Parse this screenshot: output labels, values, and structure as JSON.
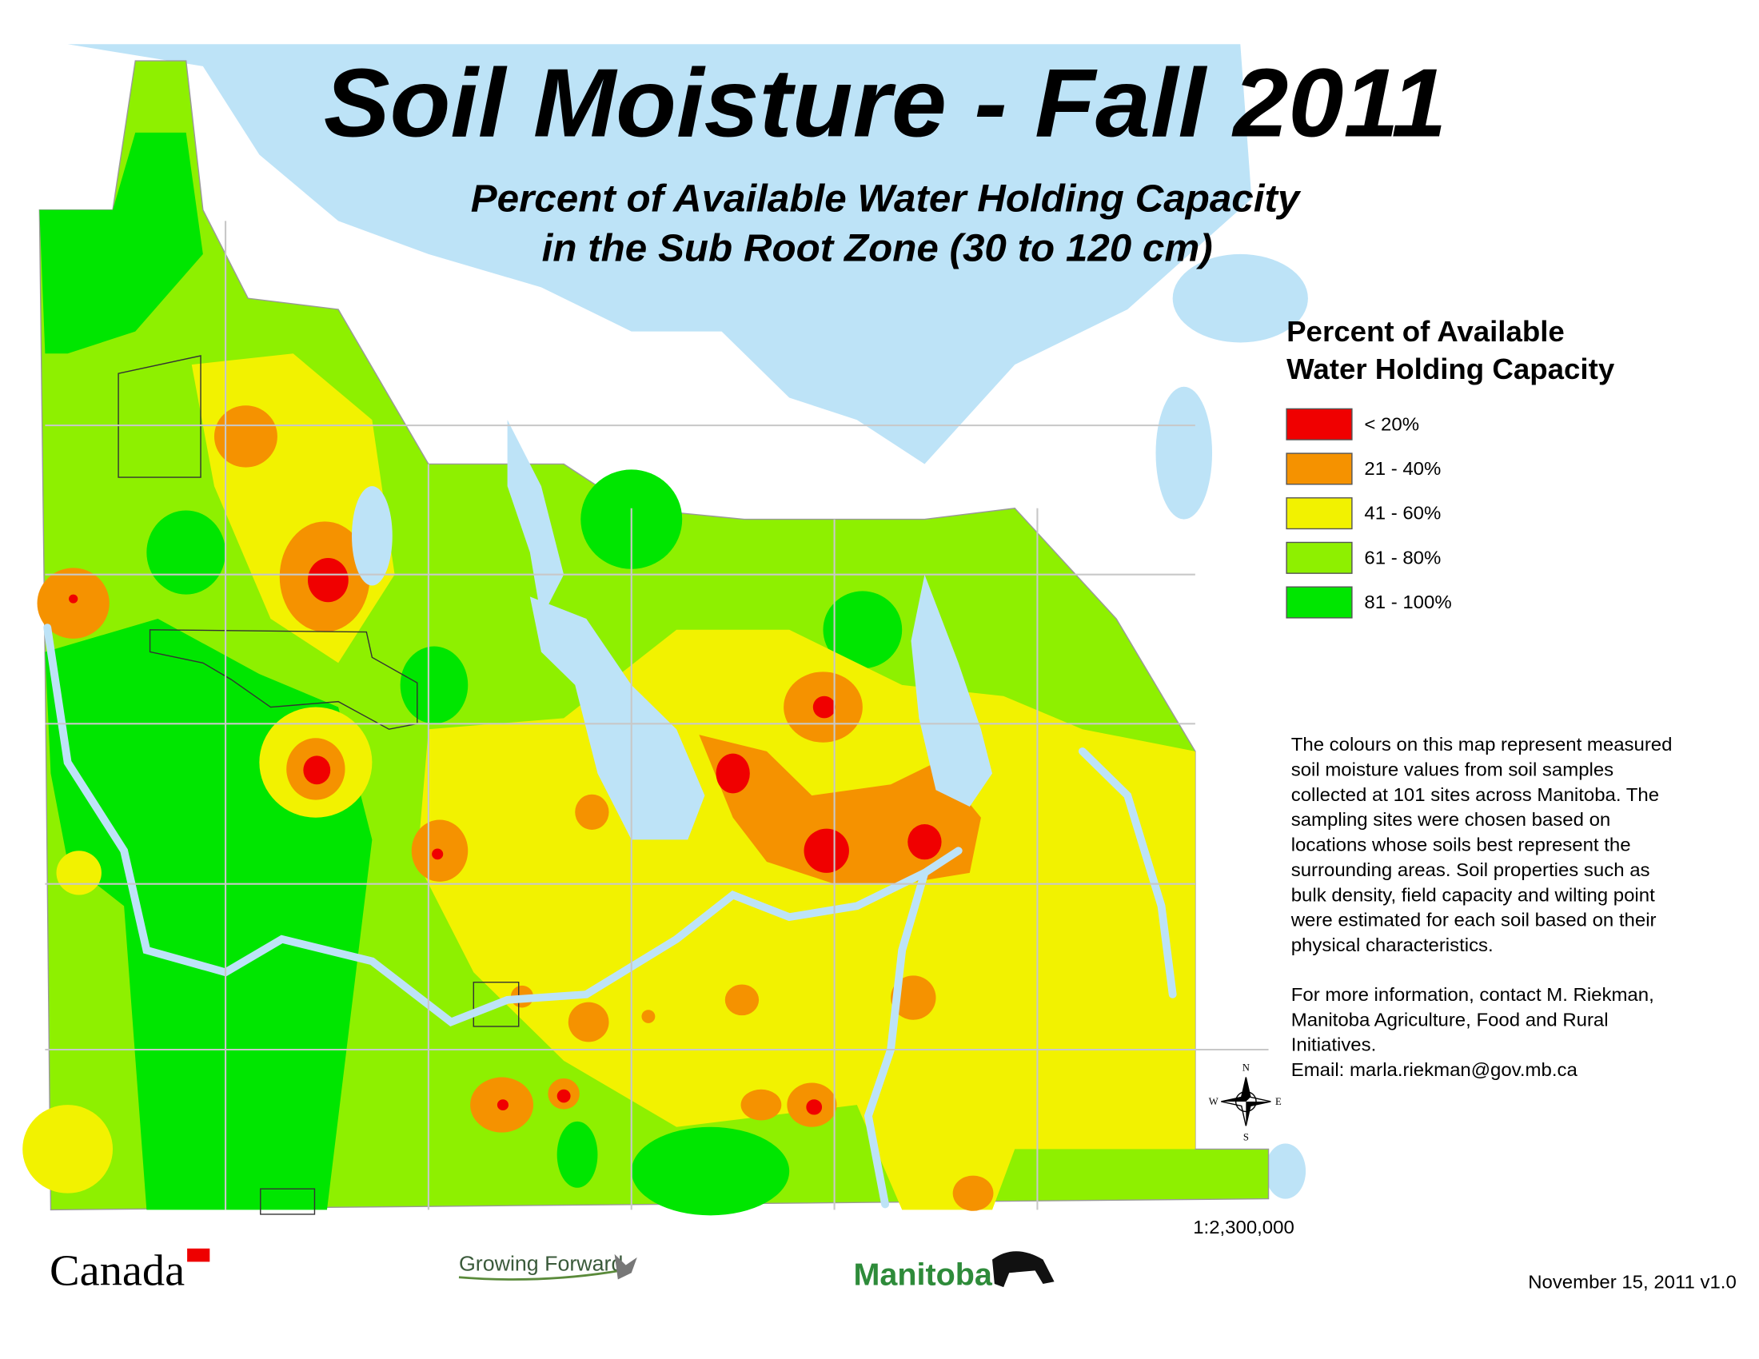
{
  "header": {
    "title": "Soil Moisture - Fall 2011",
    "subtitle": [
      "Percent of Available Water Holding Capacity",
      "in the Sub Root Zone (30 to 120 cm)"
    ]
  },
  "legend": {
    "title": [
      "Percent of Available",
      "Water Holding Capacity"
    ],
    "items": [
      {
        "label": "< 20%",
        "color": "#f00000"
      },
      {
        "label": "21 - 40%",
        "color": "#f59200"
      },
      {
        "label": "41 - 60%",
        "color": "#f2f200"
      },
      {
        "label": "61 - 80%",
        "color": "#8ef000"
      },
      {
        "label": "81 - 100%",
        "color": "#00e600"
      }
    ]
  },
  "description": {
    "paragraph1": [
      "The colours on this map represent measured",
      "soil moisture values from soil samples",
      "collected at 101 sites across Manitoba.  The",
      "sampling sites were chosen based on",
      "locations whose soils best represent the",
      "surrounding areas.  Soil properties such as",
      "bulk density, field capacity and wilting point",
      "were estimated for each soil based on their",
      "physical characteristics."
    ],
    "paragraph2": [
      "For more information, contact M. Riekman,",
      "Manitoba Agriculture, Food and Rural",
      "Initiatives.",
      "Email: marla.riekman@gov.mb.ca"
    ]
  },
  "compass": {
    "n": "N",
    "s": "S",
    "e": "E",
    "w": "W"
  },
  "scale": "1:2,300,000",
  "footer": {
    "canada": "Canada",
    "growing_forward": "Growing Forward",
    "manitoba": "Manitoba",
    "date": "November 15, 2011 v1.0"
  }
}
